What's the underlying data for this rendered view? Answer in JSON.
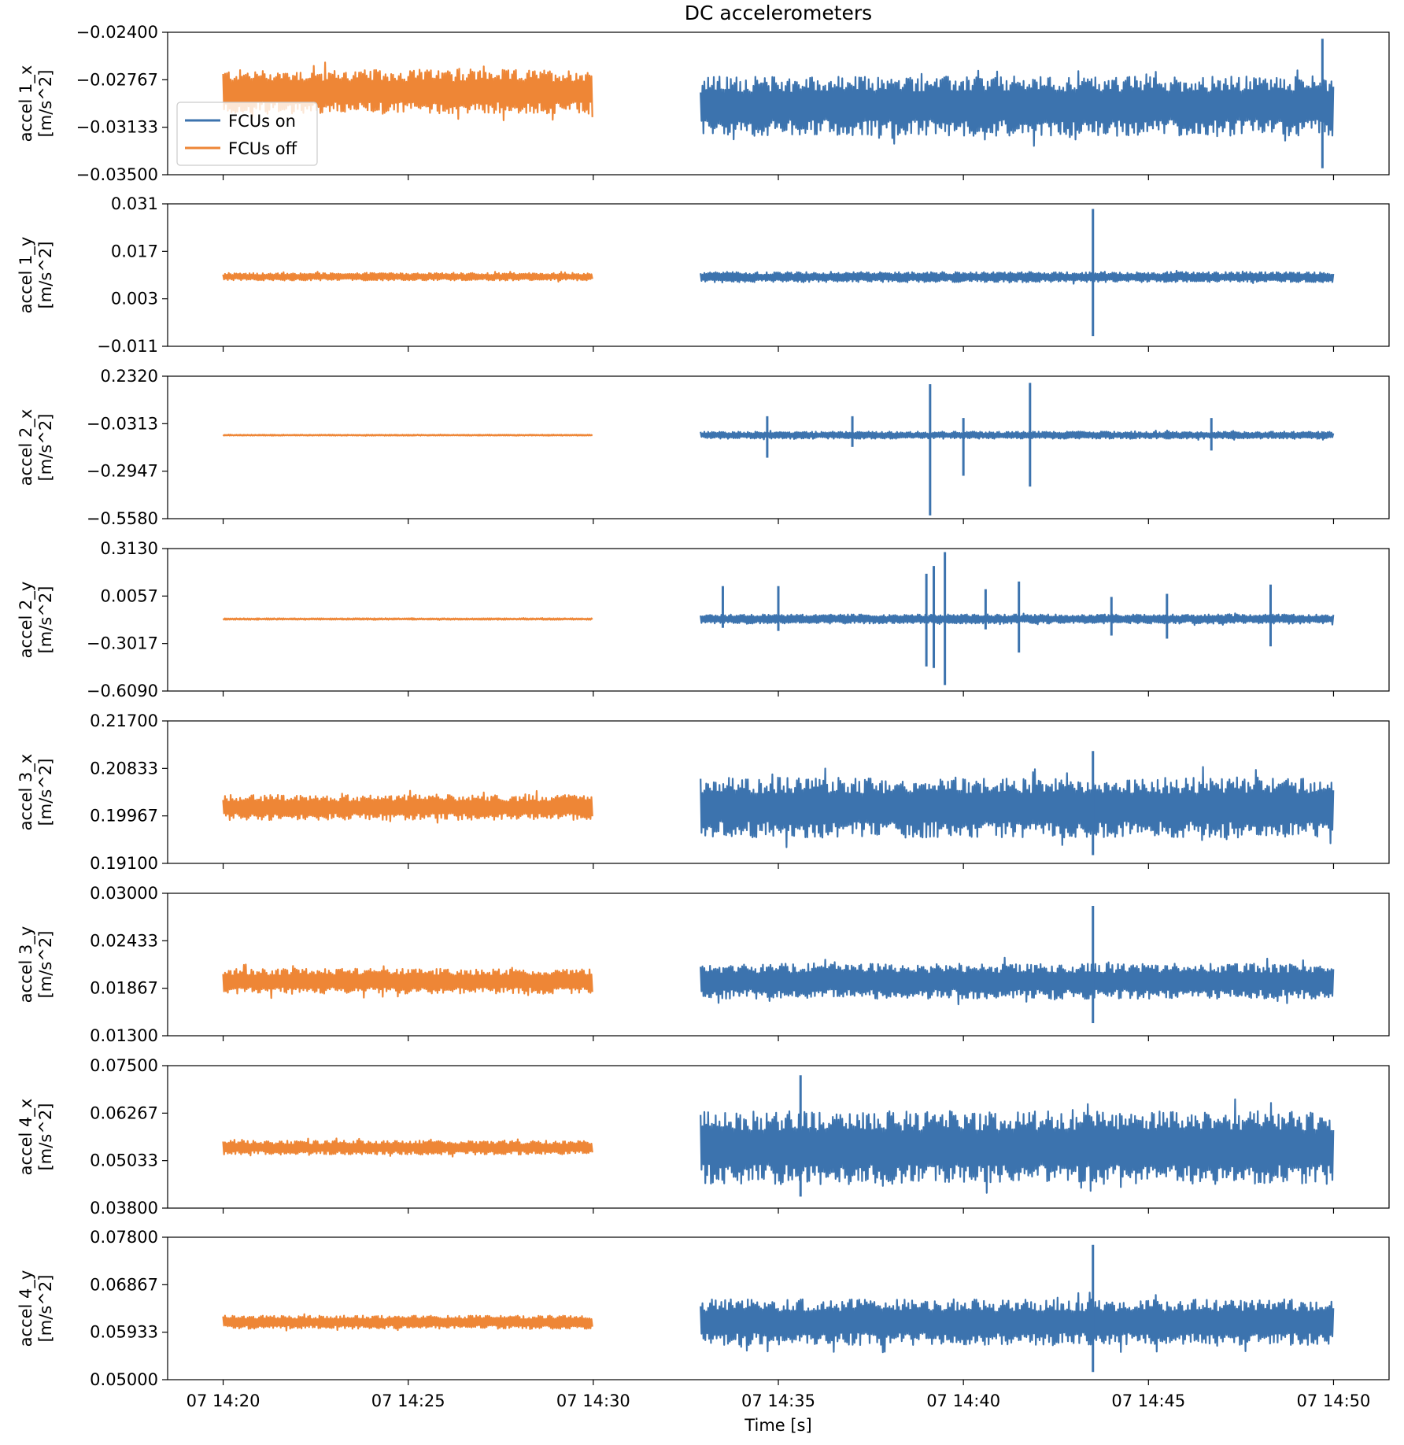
{
  "chart_data": {
    "type": "line",
    "title": "DC accelerometers",
    "xlabel": "Time [s]",
    "x_ticks": [
      "07 14:20",
      "07 14:25",
      "07 14:30",
      "07 14:35",
      "07 14:40",
      "07 14:45",
      "07 14:50"
    ],
    "x_range_minutes": [
      -1.5,
      31.5
    ],
    "legend": {
      "placement": "upper-left of top panel",
      "entries": [
        {
          "name": "FCUs on",
          "color": "#3c73ae"
        },
        {
          "name": "FCUs off",
          "color": "#ee8636"
        }
      ]
    },
    "series_segments": {
      "FCUs off": {
        "start": "07 14:20",
        "end": "07 14:30",
        "start_min": 0,
        "end_min": 10
      },
      "FCUs on": {
        "start": "07 14:33",
        "end": "07 14:50",
        "start_min": 12.9,
        "end_min": 30
      }
    },
    "spike_times_min": [
      23.5
    ],
    "panels": [
      {
        "ylabel_1": "accel 1_x",
        "ylabel_2": "[m/s^2]",
        "ylim": [
          -0.035,
          -0.024
        ],
        "yticks": [
          "−0.02400",
          "−0.02767",
          "−0.03133",
          "−0.03500"
        ],
        "off": {
          "mean": -0.0286,
          "amplitude": 0.0017
        },
        "on": {
          "mean": -0.0297,
          "amplitude": 0.0023
        },
        "on_extremes": [
          {
            "t": 29.7,
            "max": -0.0245,
            "min": -0.0345
          }
        ]
      },
      {
        "ylabel_1": "accel 1_y",
        "ylabel_2": "[m/s^2]",
        "ylim": [
          -0.011,
          0.031
        ],
        "yticks": [
          "0.031",
          "0.017",
          "0.003",
          "−0.011"
        ],
        "off": {
          "mean": 0.0095,
          "amplitude": 0.0011
        },
        "on": {
          "mean": 0.0094,
          "amplitude": 0.0015
        },
        "on_extremes": [
          {
            "t": 23.5,
            "max": 0.0295,
            "min": -0.008
          }
        ]
      },
      {
        "ylabel_1": "accel 2_x",
        "ylabel_2": "[m/s^2]",
        "ylim": [
          -0.558,
          0.232
        ],
        "yticks": [
          "0.2320",
          "−0.0313",
          "−0.2947",
          "−0.5580"
        ],
        "off": {
          "mean": -0.095,
          "amplitude": 0.003
        },
        "on": {
          "mean": -0.095,
          "amplitude": 0.02
        },
        "on_extremes": [
          {
            "t": 19.1,
            "max": 0.188,
            "min": -0.54
          },
          {
            "t": 21.8,
            "max": 0.195,
            "min": -0.38
          },
          {
            "t": 14.7,
            "max": 0.01,
            "min": -0.22
          },
          {
            "t": 17.0,
            "max": 0.01,
            "min": -0.16
          },
          {
            "t": 20.0,
            "max": 0.0,
            "min": -0.32
          },
          {
            "t": 26.7,
            "max": 0.0,
            "min": -0.18
          }
        ]
      },
      {
        "ylabel_1": "accel 2_y",
        "ylabel_2": "[m/s^2]",
        "ylim": [
          -0.609,
          0.313
        ],
        "yticks": [
          "0.3130",
          "0.0057",
          "−0.3017",
          "−0.6090"
        ],
        "off": {
          "mean": -0.143,
          "amplitude": 0.005
        },
        "on": {
          "mean": -0.143,
          "amplitude": 0.03
        },
        "on_extremes": [
          {
            "t": 19.5,
            "max": 0.29,
            "min": -0.57
          },
          {
            "t": 19.2,
            "max": 0.2,
            "min": -0.46
          },
          {
            "t": 19.0,
            "max": 0.15,
            "min": -0.45
          },
          {
            "t": 13.5,
            "max": 0.07,
            "min": -0.2
          },
          {
            "t": 15.0,
            "max": 0.07,
            "min": -0.22
          },
          {
            "t": 21.5,
            "max": 0.1,
            "min": -0.36
          },
          {
            "t": 24.0,
            "max": 0.0,
            "min": -0.25
          },
          {
            "t": 25.5,
            "max": 0.02,
            "min": -0.27
          },
          {
            "t": 28.3,
            "max": 0.08,
            "min": -0.32
          },
          {
            "t": 20.6,
            "max": 0.05,
            "min": -0.21
          }
        ]
      },
      {
        "ylabel_1": "accel 3_x",
        "ylabel_2": "[m/s^2]",
        "ylim": [
          0.191,
          0.217
        ],
        "yticks": [
          "0.21700",
          "0.20833",
          "0.19967",
          "0.19100"
        ],
        "off": {
          "mean": 0.2012,
          "amplitude": 0.0023
        },
        "on": {
          "mean": 0.2012,
          "amplitude": 0.0055
        },
        "on_extremes": [
          {
            "t": 23.5,
            "max": 0.2115,
            "min": 0.1925
          }
        ]
      },
      {
        "ylabel_1": "accel 3_y",
        "ylabel_2": "[m/s^2]",
        "ylim": [
          0.013,
          0.03
        ],
        "yticks": [
          "0.03000",
          "0.02433",
          "0.01867",
          "0.01300"
        ],
        "off": {
          "mean": 0.0195,
          "amplitude": 0.0015
        },
        "on": {
          "mean": 0.0195,
          "amplitude": 0.0021
        },
        "on_extremes": [
          {
            "t": 23.5,
            "max": 0.0285,
            "min": 0.0145
          }
        ]
      },
      {
        "ylabel_1": "accel 4_x",
        "ylabel_2": "[m/s^2]",
        "ylim": [
          0.038,
          0.075
        ],
        "yticks": [
          "0.07500",
          "0.06267",
          "0.05033",
          "0.03800"
        ],
        "off": {
          "mean": 0.0537,
          "amplitude": 0.0018
        },
        "on": {
          "mean": 0.0537,
          "amplitude": 0.0095
        },
        "on_extremes": [
          {
            "t": 15.6,
            "max": 0.0725,
            "min": 0.041
          }
        ]
      },
      {
        "ylabel_1": "accel 4_y",
        "ylabel_2": "[m/s^2]",
        "ylim": [
          0.05,
          0.078
        ],
        "yticks": [
          "0.07800",
          "0.06867",
          "0.05933",
          "0.05000"
        ],
        "off": {
          "mean": 0.0613,
          "amplitude": 0.0013
        },
        "on": {
          "mean": 0.0613,
          "amplitude": 0.0045
        },
        "on_extremes": [
          {
            "t": 23.5,
            "max": 0.0765,
            "min": 0.0515
          }
        ]
      }
    ]
  }
}
